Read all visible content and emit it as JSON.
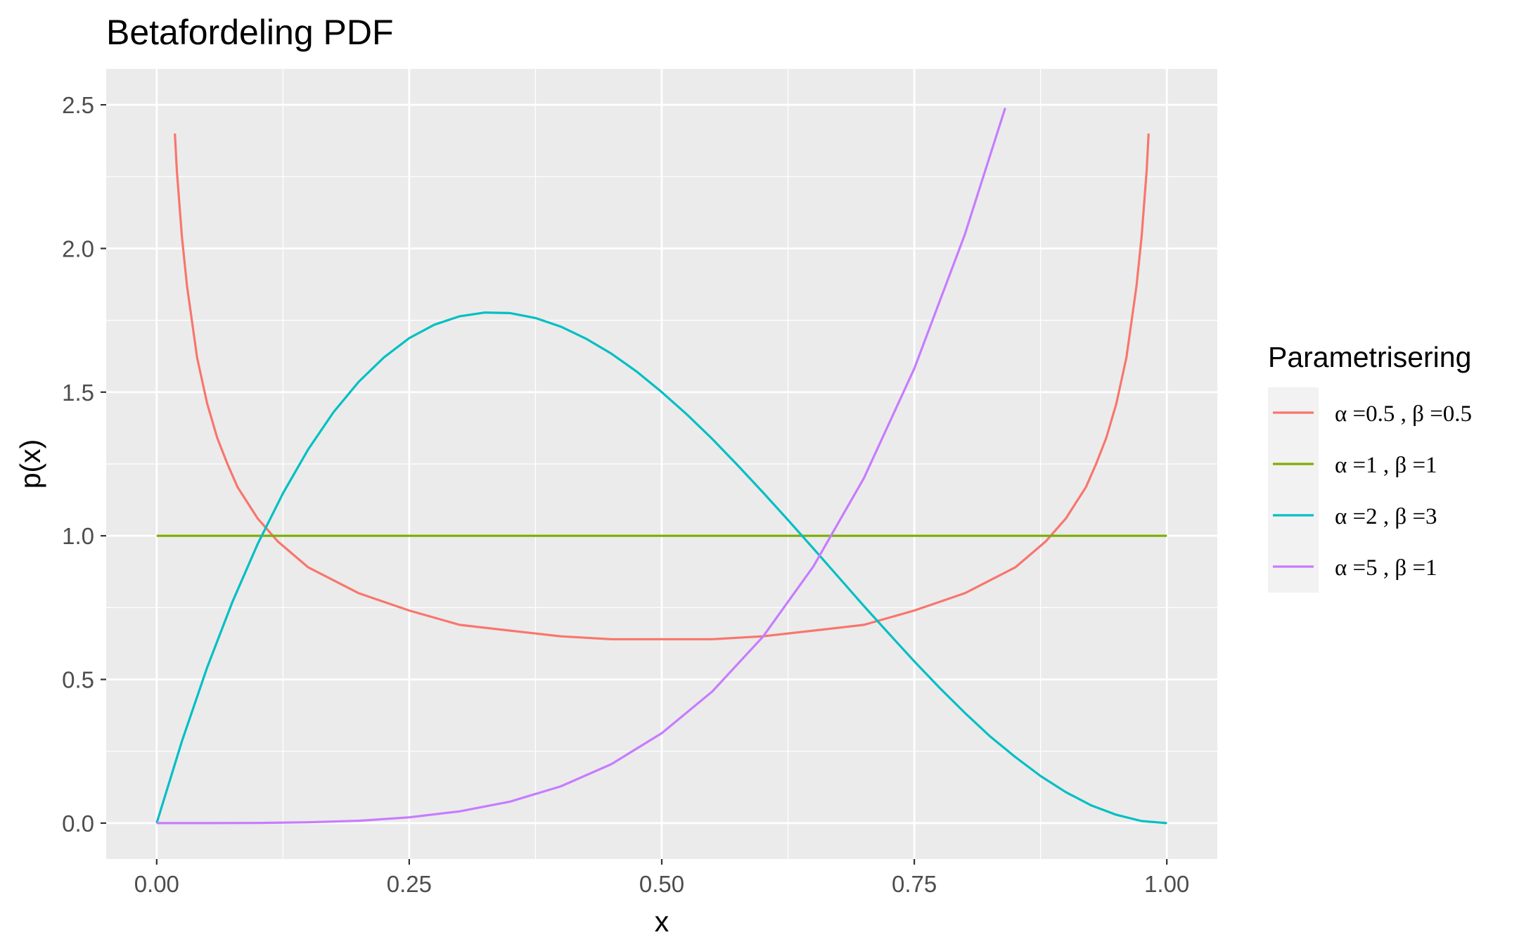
{
  "chart_data": {
    "type": "line",
    "title": "Betafordeling PDF",
    "xlabel": "x",
    "ylabel": "p(x)",
    "xlim": [
      -0.05,
      1.05
    ],
    "ylim": [
      -0.125,
      2.625
    ],
    "x_ticks": [
      0,
      0.25,
      0.5,
      0.75,
      1
    ],
    "x_tick_labels": [
      "0.00",
      "0.25",
      "0.50",
      "0.75",
      "1.00"
    ],
    "y_ticks": [
      0,
      0.5,
      1,
      1.5,
      2,
      2.5
    ],
    "y_tick_labels": [
      "0.0",
      "0.5",
      "1.0",
      "1.5",
      "2.0",
      "2.5"
    ],
    "grid": true,
    "background": "#ebebeb",
    "legend_title": "Parametrisering",
    "legend_position": "right",
    "series": [
      {
        "name": "α =0.5 ,  β =0.5",
        "color": "#f8766d",
        "x": [
          0.018,
          0.02,
          0.025,
          0.03,
          0.04,
          0.05,
          0.06,
          0.07,
          0.08,
          0.1,
          0.12,
          0.15,
          0.2,
          0.25,
          0.3,
          0.35,
          0.4,
          0.45,
          0.5,
          0.55,
          0.6,
          0.65,
          0.7,
          0.75,
          0.8,
          0.85,
          0.88,
          0.9,
          0.92,
          0.93,
          0.94,
          0.95,
          0.96,
          0.97,
          0.975,
          0.98,
          0.982
        ],
        "y": [
          2.4,
          2.27,
          2.04,
          1.87,
          1.62,
          1.46,
          1.34,
          1.25,
          1.17,
          1.06,
          0.98,
          0.89,
          0.8,
          0.74,
          0.69,
          0.67,
          0.65,
          0.64,
          0.64,
          0.64,
          0.65,
          0.67,
          0.69,
          0.74,
          0.8,
          0.89,
          0.98,
          1.06,
          1.17,
          1.25,
          1.34,
          1.46,
          1.62,
          1.87,
          2.04,
          2.27,
          2.4
        ]
      },
      {
        "name": "α =1 ,  β =1",
        "color": "#7cae00",
        "x": [
          0,
          1
        ],
        "y": [
          1,
          1
        ]
      },
      {
        "name": "α =2 ,  β =3",
        "color": "#00bfc4",
        "x": [
          0,
          0.025,
          0.05,
          0.075,
          0.1,
          0.125,
          0.15,
          0.175,
          0.2,
          0.225,
          0.25,
          0.275,
          0.3,
          0.325,
          0.35,
          0.375,
          0.4,
          0.425,
          0.45,
          0.475,
          0.5,
          0.525,
          0.55,
          0.575,
          0.6,
          0.625,
          0.65,
          0.675,
          0.7,
          0.725,
          0.75,
          0.775,
          0.8,
          0.825,
          0.85,
          0.875,
          0.9,
          0.925,
          0.95,
          0.975,
          1
        ],
        "y": [
          0,
          0.285,
          0.542,
          0.77,
          0.972,
          1.148,
          1.301,
          1.43,
          1.536,
          1.621,
          1.688,
          1.735,
          1.764,
          1.777,
          1.775,
          1.758,
          1.728,
          1.686,
          1.634,
          1.572,
          1.5,
          1.422,
          1.337,
          1.246,
          1.152,
          1.055,
          0.956,
          0.856,
          0.756,
          0.659,
          0.563,
          0.471,
          0.384,
          0.302,
          0.23,
          0.164,
          0.108,
          0.062,
          0.029,
          0.007,
          0
        ]
      },
      {
        "name": "α =5 ,  β =1",
        "color": "#c77cff",
        "x": [
          0,
          0.05,
          0.1,
          0.15,
          0.2,
          0.25,
          0.3,
          0.35,
          0.4,
          0.45,
          0.5,
          0.55,
          0.6,
          0.65,
          0.7,
          0.75,
          0.8,
          0.84
        ],
        "y": [
          0,
          0,
          0.0005,
          0.003,
          0.008,
          0.02,
          0.041,
          0.075,
          0.128,
          0.205,
          0.313,
          0.458,
          0.648,
          0.893,
          1.2,
          1.582,
          2.048,
          2.489
        ]
      }
    ]
  }
}
